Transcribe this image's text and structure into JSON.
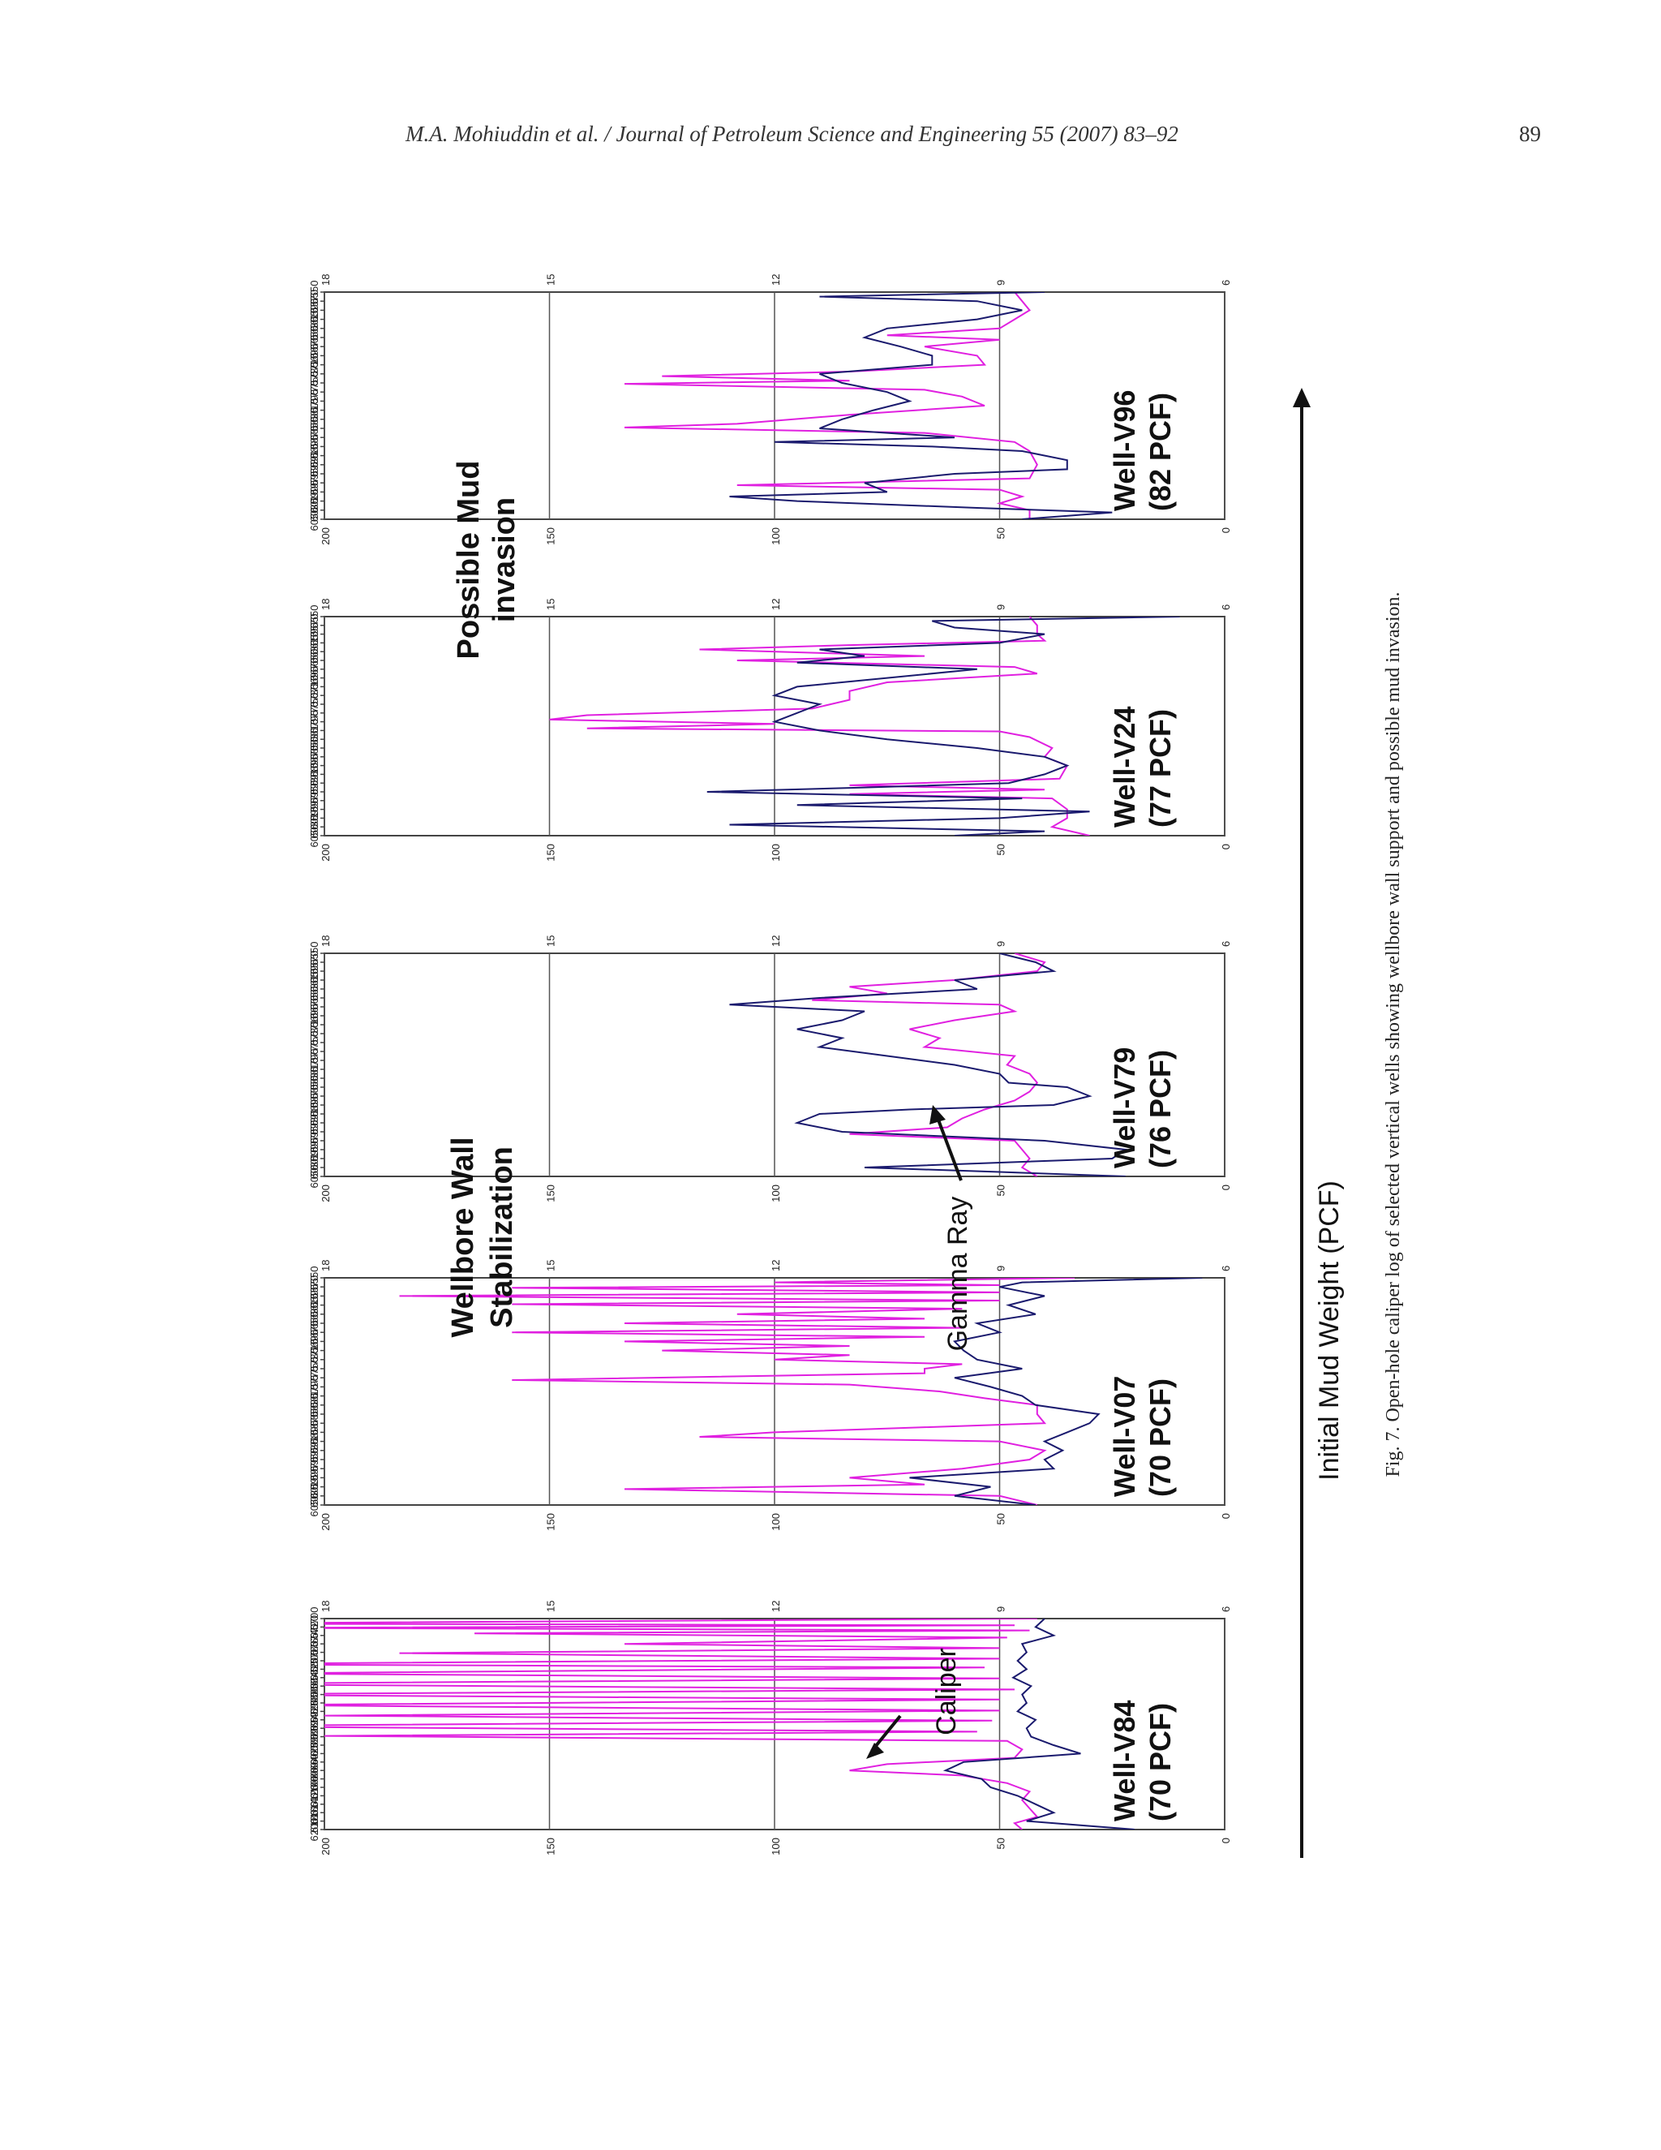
{
  "header": {
    "running_head": "M.A. Mohiuddin et al. / Journal of Petroleum Science and Engineering 55 (2007) 83–92",
    "page_number": "89"
  },
  "figure": {
    "caption": "Fig. 7. Open-hole caliper log of selected vertical wells showing wellbore wall support and possible mud invasion.",
    "arrow_label": "Initial Mud Weight (PCF)",
    "annotations": {
      "possible_mud_invasion": "Possible Mud invasion",
      "wellbore_wall_stabilization": "Wellbore Wall Stabilization",
      "gamma_ray": "Gamma Ray",
      "caliper": "Caliper"
    },
    "colors": {
      "caliper": "#e020e0",
      "gamma_ray": "#1a1a6e",
      "grid": "#555555"
    }
  },
  "chart_data": [
    {
      "type": "line",
      "well": "Well-V84",
      "mud_weight": "(70 PCF)",
      "xlim": [
        5700,
        6200
      ],
      "x_ticks": [
        5700,
        5720,
        5740,
        5760,
        5780,
        5800,
        5820,
        5840,
        5860,
        5880,
        5900,
        5920,
        5940,
        5960,
        5980,
        6000,
        6020,
        6040,
        6060,
        6080,
        6100,
        6120,
        6140,
        6160,
        6180,
        6200
      ],
      "ylim": [
        6,
        18
      ],
      "y_ticks": [
        6,
        9,
        12,
        15,
        18
      ],
      "y2lim": [
        0,
        200
      ],
      "y2_ticks": [
        0,
        50,
        100,
        150,
        200
      ],
      "series": [
        {
          "axis": "y",
          "x": [
            5700,
            5712,
            5716,
            5722,
            5728,
            5735,
            5745,
            5760,
            5770,
            5782,
            5795,
            5808,
            5816,
            5830,
            5842,
            5855,
            5868,
            5880,
            5892,
            5905,
            5918,
            5930,
            5942,
            5955,
            5968,
            5978,
            5990,
            6010,
            6030,
            6045,
            6060,
            6072,
            6090,
            6110,
            6130,
            6150,
            6170,
            6185,
            6200
          ],
          "y": [
            8.5,
            20,
            8.8,
            19,
            8.6,
            16,
            8.9,
            14,
            9,
            17,
            9,
            20,
            9.2,
            19,
            9,
            20,
            8.8,
            20,
            9,
            19,
            9,
            18,
            9.1,
            20,
            9.3,
            18,
            8.9,
            8.7,
            8.8,
            10.5,
            11,
            9.5,
            8.9,
            8.6,
            8.7,
            8.6,
            8.5,
            8.8,
            8.7
          ]
        },
        {
          "axis": "y2",
          "x": [
            5700,
            5720,
            5740,
            5760,
            5780,
            5800,
            5820,
            5840,
            5860,
            5880,
            5900,
            5920,
            5940,
            5960,
            5980,
            6000,
            6020,
            6040,
            6060,
            6080,
            6100,
            6120,
            6140,
            6160,
            6180,
            6200
          ],
          "y": [
            40,
            42,
            38,
            45,
            44,
            46,
            44,
            47,
            43,
            45,
            44,
            46,
            42,
            44,
            43,
            38,
            32,
            58,
            62,
            54,
            52,
            46,
            42,
            38,
            44,
            20
          ]
        }
      ]
    },
    {
      "type": "line",
      "well": "Well-V07",
      "mud_weight": "(70 PCF)",
      "xlim": [
        5550,
        6050
      ],
      "x_ticks": [
        5550,
        5570,
        5590,
        5610,
        5630,
        5650,
        5670,
        5690,
        5710,
        5730,
        5750,
        5770,
        5790,
        5810,
        5830,
        5850,
        5870,
        5890,
        5910,
        5930,
        5950,
        5970,
        5990,
        6010,
        6030,
        6050
      ],
      "ylim": [
        6,
        18
      ],
      "y_ticks": [
        6,
        9,
        12,
        15,
        18
      ],
      "y2lim": [
        0,
        200
      ],
      "y2_ticks": [
        0,
        50,
        100,
        150,
        200
      ],
      "series": [
        {
          "axis": "y",
          "x": [
            5550,
            5560,
            5566,
            5572,
            5582,
            5590,
            5600,
            5608,
            5618,
            5630,
            5640,
            5650,
            5660,
            5670,
            5680,
            5690,
            5700,
            5710,
            5720,
            5730,
            5740,
            5750,
            5760,
            5775,
            5785,
            5800,
            5815,
            5830,
            5850,
            5870,
            5890,
            5900,
            5910,
            5930,
            5950,
            5970,
            5990,
            6005,
            6015,
            6030,
            6050
          ],
          "y": [
            8,
            12,
            9,
            15.5,
            9,
            17,
            9,
            15.5,
            9.5,
            12.5,
            10,
            14,
            9.5,
            15.5,
            10,
            14,
            11,
            13.5,
            11,
            12,
            9.5,
            10,
            10,
            15.5,
            11,
            9.8,
            9.2,
            8.5,
            8.5,
            8.4,
            12,
            13,
            9,
            8.4,
            8.6,
            9.5,
            11,
            10,
            14,
            9,
            8.5
          ]
        },
        {
          "axis": "y2",
          "x": [
            5550,
            5560,
            5570,
            5590,
            5610,
            5630,
            5650,
            5670,
            5690,
            5710,
            5730,
            5750,
            5770,
            5790,
            5810,
            5830,
            5850,
            5870,
            5890,
            5910,
            5930,
            5950,
            5970,
            5990,
            6010,
            6030,
            6050
          ],
          "y": [
            5,
            45,
            50,
            40,
            48,
            42,
            55,
            50,
            60,
            58,
            55,
            45,
            60,
            52,
            45,
            42,
            28,
            30,
            35,
            40,
            36,
            40,
            38,
            70,
            52,
            60,
            42
          ]
        }
      ]
    },
    {
      "type": "line",
      "well": "Well-V79",
      "mud_weight": "(76 PCF)",
      "xlim": [
        5550,
        6050
      ],
      "x_ticks": [
        5550,
        5570,
        5590,
        5610,
        5630,
        5650,
        5670,
        5690,
        5710,
        5730,
        5750,
        5770,
        5790,
        5810,
        5830,
        5850,
        5870,
        5890,
        5910,
        5930,
        5950,
        5970,
        5990,
        6010,
        6030,
        6050
      ],
      "ylim": [
        6,
        18
      ],
      "y_ticks": [
        6,
        9,
        12,
        15,
        18
      ],
      "y2lim": [
        0,
        200
      ],
      "y2_ticks": [
        0,
        50,
        100,
        150,
        200
      ],
      "series": [
        {
          "axis": "y",
          "x": [
            5550,
            5570,
            5590,
            5610,
            5625,
            5640,
            5655,
            5665,
            5680,
            5700,
            5720,
            5740,
            5760,
            5780,
            5800,
            5820,
            5840,
            5860,
            5880,
            5900,
            5920,
            5940,
            5955,
            5970,
            5990,
            6010,
            6030,
            6050
          ],
          "y": [
            8.8,
            8.4,
            8.5,
            9.6,
            11,
            10.5,
            11.5,
            9,
            8.8,
            9.6,
            10.2,
            9.8,
            10,
            8.8,
            8.9,
            8.6,
            8.5,
            8.6,
            8.8,
            9.2,
            9.5,
            9.7,
            11,
            8.8,
            8.7,
            8.6,
            8.7,
            8.5
          ]
        },
        {
          "axis": "y2",
          "x": [
            5550,
            5570,
            5590,
            5610,
            5630,
            5650,
            5665,
            5680,
            5700,
            5720,
            5740,
            5760,
            5780,
            5800,
            5820,
            5840,
            5850,
            5870,
            5890,
            5900,
            5910,
            5930,
            5950,
            5970,
            5990,
            6010,
            6030,
            6040,
            6050
          ],
          "y": [
            50,
            42,
            38,
            60,
            55,
            90,
            110,
            80,
            85,
            95,
            85,
            90,
            75,
            60,
            50,
            48,
            35,
            30,
            38,
            70,
            90,
            95,
            85,
            40,
            22,
            25,
            80,
            50,
            22
          ]
        }
      ]
    },
    {
      "type": "line",
      "well": "Well-V24",
      "mud_weight": "(77 PCF)",
      "xlim": [
        5550,
        6050
      ],
      "x_ticks": [
        5550,
        5570,
        5590,
        5610,
        5630,
        5650,
        5670,
        5690,
        5710,
        5730,
        5750,
        5770,
        5790,
        5810,
        5830,
        5850,
        5870,
        5890,
        5910,
        5930,
        5950,
        5970,
        5990,
        6010,
        6030,
        6050
      ],
      "ylim": [
        6,
        18
      ],
      "y_ticks": [
        6,
        9,
        12,
        15,
        18
      ],
      "y2lim": [
        0,
        200
      ],
      "y2_ticks": [
        0,
        50,
        100,
        150,
        200
      ],
      "series": [
        {
          "axis": "y",
          "x": [
            5550,
            5570,
            5590,
            5605,
            5615,
            5625,
            5640,
            5650,
            5665,
            5680,
            5700,
            5720,
            5740,
            5760,
            5775,
            5785,
            5795,
            5805,
            5812,
            5825,
            5850,
            5870,
            5890,
            5920,
            5935,
            5945,
            5955,
            5965,
            5990,
            6010,
            6030,
            6050
          ],
          "y": [
            8.6,
            8.5,
            8.5,
            8.4,
            11,
            13,
            10,
            12.5,
            8.8,
            8.5,
            10.5,
            11,
            11,
            11.5,
            14.5,
            15,
            12,
            14.5,
            9,
            8.6,
            8.3,
            8.4,
            8.1,
            8.2,
            11,
            8.4,
            11,
            8.3,
            8.1,
            8.1,
            8.3,
            7.8
          ]
        },
        {
          "axis": "y2",
          "x": [
            5550,
            5560,
            5575,
            5590,
            5610,
            5625,
            5640,
            5655,
            5670,
            5690,
            5710,
            5730,
            5750,
            5770,
            5790,
            5810,
            5830,
            5850,
            5870,
            5890,
            5910,
            5930,
            5940,
            5950,
            5965,
            5980,
            5995,
            6010,
            6025,
            6040,
            6050
          ],
          "y": [
            10,
            65,
            60,
            40,
            50,
            90,
            80,
            95,
            55,
            75,
            95,
            100,
            90,
            95,
            100,
            90,
            75,
            55,
            40,
            35,
            40,
            48,
            80,
            115,
            45,
            95,
            30,
            50,
            110,
            40,
            60
          ]
        }
      ]
    },
    {
      "type": "line",
      "well": "Well-V96",
      "mud_weight": "(82 PCF)",
      "xlim": [
        5550,
        6050
      ],
      "x_ticks": [
        5550,
        5570,
        5590,
        5610,
        5630,
        5650,
        5670,
        5690,
        5710,
        5730,
        5750,
        5770,
        5790,
        5810,
        5830,
        5850,
        5870,
        5890,
        5910,
        5930,
        5950,
        5970,
        5990,
        6010,
        6030,
        6050
      ],
      "ylim": [
        6,
        18
      ],
      "y_ticks": [
        6,
        9,
        12,
        15,
        18
      ],
      "y2lim": [
        0,
        200
      ],
      "y2_ticks": [
        0,
        50,
        100,
        150,
        200
      ],
      "series": [
        {
          "axis": "y",
          "x": [
            5550,
            5570,
            5590,
            5610,
            5630,
            5645,
            5655,
            5670,
            5690,
            5710,
            5725,
            5735,
            5745,
            5752,
            5765,
            5780,
            5800,
            5820,
            5840,
            5848,
            5860,
            5880,
            5900,
            5930,
            5960,
            5975,
            5985,
            6000,
            6015,
            6030,
            6050
          ],
          "y": [
            8.8,
            8.7,
            8.6,
            8.8,
            9,
            10.5,
            9,
            10,
            9.3,
            9.2,
            11,
            13.5,
            11,
            14,
            10,
            9.5,
            9.2,
            11,
            12.5,
            14,
            10,
            8.8,
            8.6,
            8.5,
            8.6,
            12.5,
            9,
            8.7,
            9,
            8.6,
            8.6
          ]
        },
        {
          "axis": "y2",
          "x": [
            5550,
            5560,
            5570,
            5590,
            5610,
            5630,
            5650,
            5670,
            5690,
            5710,
            5730,
            5750,
            5770,
            5790,
            5810,
            5830,
            5850,
            5870,
            5880,
            5890,
            5900,
            5920,
            5940,
            5950,
            5970,
            5990,
            6000,
            6010,
            6025,
            6035,
            6050
          ],
          "y": [
            40,
            90,
            55,
            45,
            55,
            75,
            80,
            72,
            65,
            65,
            90,
            85,
            75,
            70,
            78,
            85,
            90,
            60,
            100,
            65,
            45,
            35,
            35,
            60,
            80,
            75,
            110,
            95,
            55,
            25,
            45
          ]
        }
      ]
    }
  ]
}
